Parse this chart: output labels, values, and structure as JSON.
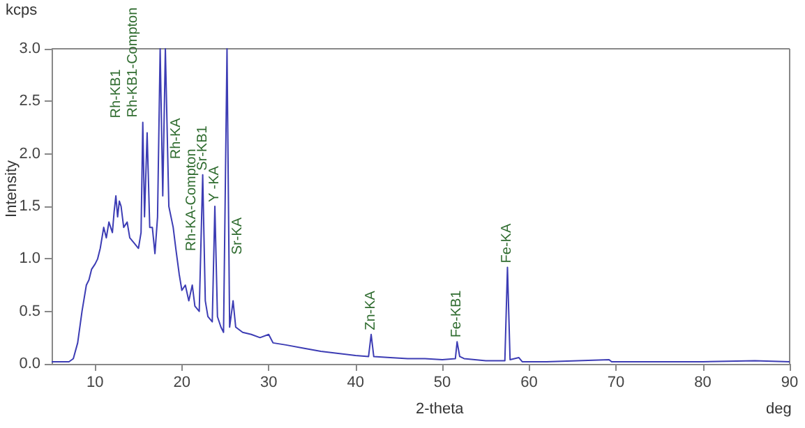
{
  "chart_data": {
    "type": "line",
    "ylabel": "Intensity",
    "xlabel": "2-theta",
    "annotations": [
      "kcps",
      "deg",
      {
        "text": "Rh-KB1",
        "x": 15.5,
        "y": 2.3
      },
      {
        "text": "Rh-KB1-Compton",
        "x": 16.0,
        "y": 2.2
      },
      {
        "text": "Rh-KA",
        "x": 17.6,
        "y": 2.6
      },
      {
        "text": "Rh-KA-Compton",
        "x": 18.4,
        "y": 1.3
      },
      {
        "text": "Sr-KB1",
        "x": 22.4,
        "y": 1.8
      },
      {
        "text": "Y -KA",
        "x": 23.8,
        "y": 1.5
      },
      {
        "text": "Sr-KA",
        "x": 25.2,
        "y": 1.0
      },
      {
        "text": "Zn-KA",
        "x": 41.8,
        "y": 0.28
      },
      {
        "text": "Fe-KB1",
        "x": 51.7,
        "y": 0.21
      },
      {
        "text": "Fe-KA",
        "x": 57.5,
        "y": 0.92
      }
    ],
    "xlim": [
      5,
      90
    ],
    "xticks": [
      10,
      20,
      30,
      40,
      50,
      60,
      70,
      80,
      90
    ],
    "ylim": [
      0,
      3
    ],
    "yticks": [
      {
        "value": 0,
        "label": "0.0"
      },
      0.5,
      {
        "value": 1,
        "label": "1.0"
      },
      1.5,
      {
        "value": 2,
        "label": "2.0"
      },
      2.5,
      {
        "value": 3,
        "label": "3.0"
      }
    ],
    "grid": false,
    "marker": "none",
    "line_style": "solid",
    "series": [
      {
        "color": "#3c3cb4",
        "x": [
          5,
          6,
          7,
          7.5,
          8,
          8.5,
          9,
          9.3,
          9.6,
          10,
          10.3,
          10.6,
          11,
          11.3,
          11.6,
          12,
          12.2,
          12.4,
          12.6,
          12.8,
          13,
          13.3,
          13.7,
          14,
          14.5,
          15,
          15.3,
          15.5,
          15.7,
          16,
          16.3,
          16.6,
          16.9,
          17.2,
          17.5,
          17.8,
          18.1,
          18.5,
          19,
          19.3,
          19.7,
          20,
          20.4,
          20.8,
          21.2,
          21.5,
          22,
          22.4,
          22.7,
          23,
          23.5,
          23.8,
          24.1,
          24.5,
          24.8,
          25.2,
          25.5,
          25.9,
          26.2,
          27,
          28,
          29,
          30,
          30.5,
          32,
          34,
          36,
          38,
          40,
          41.5,
          41.8,
          42.1,
          44,
          46,
          48,
          50,
          51.5,
          51.7,
          52,
          52.5,
          55,
          57.2,
          57.5,
          57.8,
          58.8,
          59.2,
          62,
          69.2,
          69.5,
          75,
          80,
          86,
          90
        ],
        "values": [
          0.02,
          0.02,
          0.02,
          0.05,
          0.2,
          0.5,
          0.75,
          0.8,
          0.9,
          0.95,
          1.0,
          1.1,
          1.3,
          1.2,
          1.35,
          1.25,
          1.45,
          1.6,
          1.4,
          1.55,
          1.5,
          1.3,
          1.35,
          1.2,
          1.15,
          1.1,
          1.25,
          2.3,
          1.4,
          2.2,
          1.3,
          1.3,
          1.05,
          1.4,
          3.0,
          1.6,
          3.0,
          1.5,
          1.3,
          1.1,
          0.85,
          0.7,
          0.75,
          0.6,
          0.75,
          0.55,
          0.5,
          1.8,
          0.6,
          0.45,
          0.4,
          1.5,
          0.45,
          0.35,
          0.3,
          3.0,
          0.35,
          0.6,
          0.35,
          0.3,
          0.28,
          0.25,
          0.28,
          0.2,
          0.18,
          0.15,
          0.12,
          0.1,
          0.08,
          0.07,
          0.28,
          0.07,
          0.06,
          0.05,
          0.05,
          0.04,
          0.05,
          0.21,
          0.07,
          0.05,
          0.03,
          0.03,
          0.92,
          0.04,
          0.06,
          0.02,
          0.02,
          0.04,
          0.02,
          0.02,
          0.02,
          0.03,
          0.02
        ]
      }
    ]
  }
}
